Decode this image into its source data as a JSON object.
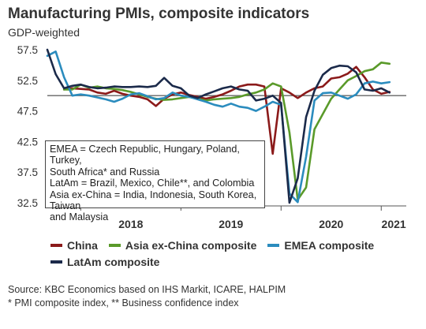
{
  "title": "Manufacturing PMIs, composite indicators",
  "subtitle": "GDP-weighted",
  "note_lines": [
    "EMEA = Czech Republic, Hungary, Poland, Turkey,",
    "South Africa* and Russia",
    "LatAm = Brazil, Mexico, Chile**, and Colombia",
    "Asia ex-China = India, Indonesia, South Korea, Taiwan",
    "and Malaysia"
  ],
  "footer": {
    "source": "Source: KBC Economics based on IHS Markit, ICARE, HALPIM",
    "footnote": "* PMI composite index, ** Business confidence index"
  },
  "chart_data": {
    "type": "line",
    "title": "Manufacturing PMIs, composite indicators",
    "subtitle": "GDP-weighted",
    "ylim": [
      32.5,
      57.5
    ],
    "yticks": [
      "57.5",
      "52.5",
      "47.5",
      "42.5",
      "37.5",
      "32.5"
    ],
    "reference_line": 50,
    "x_start": "2017-09",
    "x_end": "2021-04",
    "x_labels": [
      "2018",
      "2019",
      "2020",
      "2021"
    ],
    "grid": false,
    "legend_position": "bottom",
    "series": [
      {
        "name": "China",
        "color": "#8b1a1a",
        "start": "2017-11",
        "values": [
          51.0,
          51.2,
          51.1,
          51.0,
          50.5,
          50.3,
          50.8,
          50.3,
          50.0,
          49.8,
          49.4,
          48.3,
          49.5,
          50.2,
          50.5,
          50.1,
          49.8,
          49.5,
          49.8,
          50.2,
          50.8,
          51.5,
          51.8,
          51.8,
          51.5,
          40.5,
          51.2,
          50.5,
          49.6,
          50.5,
          51.2,
          51.5,
          52.8,
          53.0,
          53.6,
          54.7,
          53.0,
          51.0,
          50.3,
          50.6
        ]
      },
      {
        "name": "Asia ex-China composite",
        "color": "#5a9a2a",
        "start": "2017-11",
        "values": [
          51.0,
          51.0,
          51.8,
          51.3,
          51.5,
          51.2,
          51.1,
          50.9,
          50.6,
          50.2,
          49.8,
          49.5,
          49.3,
          49.4,
          49.6,
          49.8,
          49.5,
          49.2,
          49.4,
          49.5,
          49.6,
          49.8,
          50.2,
          50.5,
          51.0,
          52.0,
          51.5,
          44.0,
          33.0,
          35.0,
          44.5,
          47.0,
          49.5,
          51.0,
          52.5,
          53.2,
          54.0,
          54.3,
          55.4,
          55.2
        ]
      },
      {
        "name": "EMEA composite",
        "color": "#2b8cbe",
        "start": "2017-09",
        "values": [
          56.5,
          57.2,
          53.0,
          50.0,
          50.2,
          50.0,
          49.7,
          49.4,
          49.0,
          49.5,
          50.2,
          50.4,
          49.9,
          49.4,
          49.6,
          50.5,
          50.0,
          49.8,
          49.4,
          49.0,
          48.5,
          48.2,
          48.7,
          48.2,
          48.0,
          47.5,
          48.2,
          49.0,
          48.5,
          34.0,
          32.6,
          40.0,
          49.2,
          50.4,
          50.5,
          50.0,
          49.5,
          50.2,
          52.0,
          52.3,
          52.0,
          52.2
        ]
      },
      {
        "name": "LatAm composite",
        "color": "#1b2a4a",
        "start": "2017-09",
        "values": [
          57.5,
          53.5,
          51.2,
          51.6,
          51.8,
          51.4,
          51.2,
          51.3,
          51.5,
          51.4,
          51.4,
          51.5,
          51.4,
          51.6,
          52.9,
          51.6,
          51.2,
          50.0,
          49.6,
          50.2,
          50.7,
          51.2,
          51.5,
          51.0,
          50.8,
          49.2,
          49.5,
          50.0,
          48.8,
          32.5,
          36.5,
          46.5,
          50.8,
          53.4,
          54.5,
          54.9,
          54.8,
          53.8,
          51.0,
          50.8,
          51.2,
          50.5
        ]
      }
    ]
  }
}
